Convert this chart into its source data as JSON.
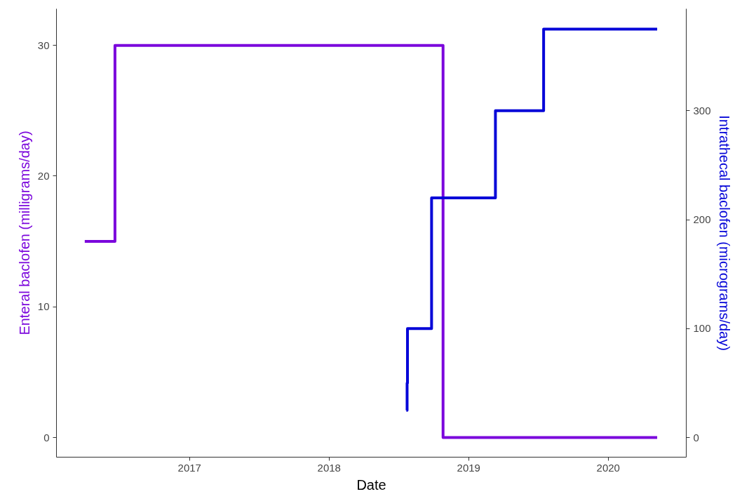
{
  "chart_data": {
    "type": "step",
    "xlabel": "Date",
    "ylabel": "Enteral baclofen (milligrams/day)",
    "y2label": "Intrathecal baclofen (micrograms/day)",
    "xlim": [
      "2016-01-19",
      "2020-07-23"
    ],
    "xticks": [
      "2017",
      "2018",
      "2019",
      "2020"
    ],
    "ylim": [
      -1.5,
      32.8
    ],
    "yticks": [
      0,
      10,
      20,
      30
    ],
    "y2lim": [
      -18,
      393.6
    ],
    "y2ticks": [
      0,
      100,
      200,
      300
    ],
    "grid": false,
    "series": [
      {
        "color": "#7b06dc",
        "x": [
          "2016-04-02",
          "2016-06-20",
          "2018-10-26",
          "2020-05-08"
        ],
        "values": [
          15,
          30,
          0,
          0
        ]
      },
      {
        "color": "#0505d8",
        "axis": "y2",
        "x": [
          "2018-07-22",
          "2018-07-24",
          "2018-07-25",
          "2018-09-26",
          "2019-03-12",
          "2019-07-16",
          "2020-05-08"
        ],
        "values": [
          25,
          50,
          100,
          220,
          300,
          375,
          375
        ]
      }
    ]
  }
}
